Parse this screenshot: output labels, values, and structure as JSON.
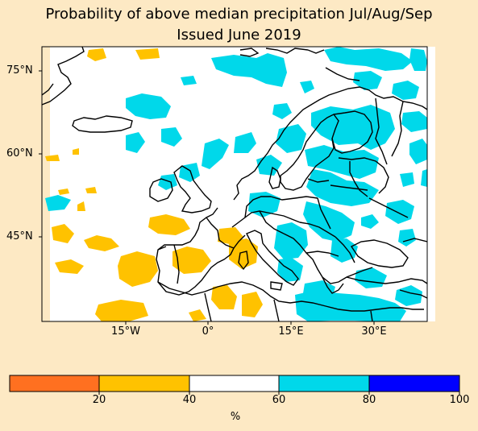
{
  "title": {
    "line1": "Probability of above median precipitation Jul/Aug/Sep",
    "line2": "Issued June 2019"
  },
  "lat_ticks": [
    "75°N",
    "60°N",
    "45°N"
  ],
  "lon_ticks": [
    "15°W",
    "0°",
    "15°E",
    "30°E"
  ],
  "colorbar": {
    "ticks": [
      "20",
      "40",
      "60",
      "80",
      "100"
    ],
    "unit": "%",
    "colors": [
      "#ff7020",
      "#ffc200",
      "#ffffff",
      "#00d8ea",
      "#0000ff"
    ]
  },
  "colors": {
    "background": "#fde9c4",
    "below_median": "#ffc200",
    "above_median": "#00d8ea",
    "coastline": "#000000"
  }
}
